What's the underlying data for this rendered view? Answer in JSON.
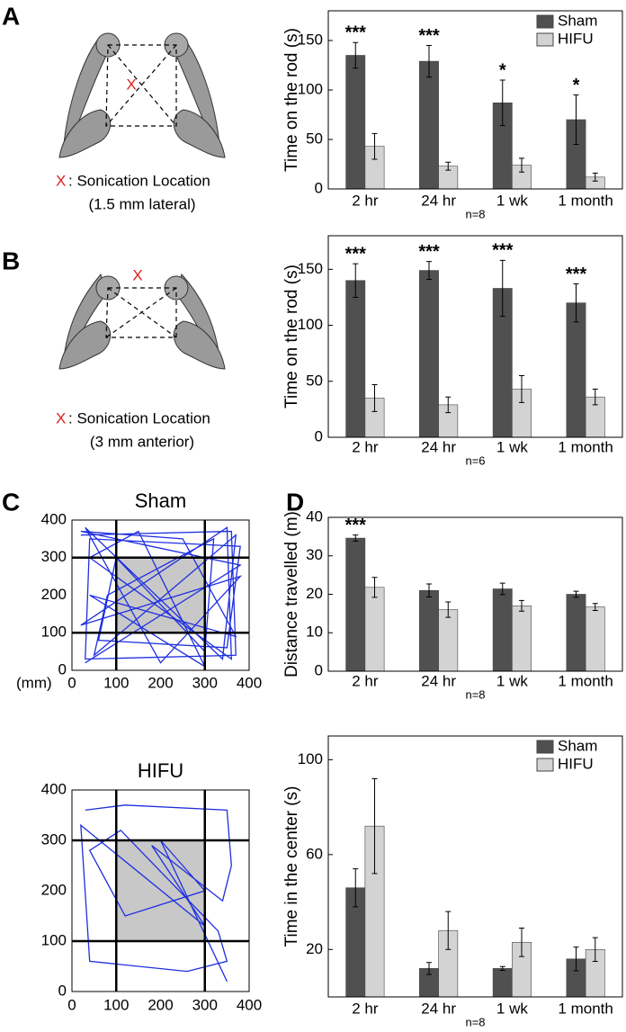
{
  "panels": [
    "A",
    "B",
    "C",
    "D"
  ],
  "diagrams": [
    {
      "marker": "X",
      "caption": ": Sonication Location",
      "detail": "(1.5 mm lateral)"
    },
    {
      "marker": "X",
      "caption": ": Sonication Location",
      "detail": "(3 mm anterior)"
    }
  ],
  "chart_data": [
    {
      "type": "bar",
      "y_label": "Time on the rod (s)",
      "x_label": "n=8",
      "categories": [
        "2 hr",
        "24 hr",
        "1 wk",
        "1 month"
      ],
      "series": [
        {
          "name": "Sham",
          "color": "#505050",
          "values": [
            135,
            129,
            87,
            70
          ],
          "errors": [
            13,
            16,
            23,
            25
          ]
        },
        {
          "name": "HIFU",
          "color": "#d3d3d3",
          "values": [
            43,
            23,
            24,
            12
          ],
          "errors": [
            13,
            4,
            7,
            4
          ]
        }
      ],
      "annotations": [
        "***",
        "***",
        "*",
        "*"
      ],
      "ylim": [
        0,
        180
      ],
      "yticks": [
        0,
        50,
        100,
        150
      ],
      "legend": "upper right"
    },
    {
      "type": "bar",
      "y_label": "Time on the rod (s)",
      "x_label": "n=6",
      "categories": [
        "2 hr",
        "24 hr",
        "1 wk",
        "1 month"
      ],
      "series": [
        {
          "name": "Sham",
          "color": "#505050",
          "values": [
            140,
            149,
            133,
            120
          ],
          "errors": [
            15,
            8,
            25,
            17
          ]
        },
        {
          "name": "HIFU",
          "color": "#d3d3d3",
          "values": [
            35,
            29,
            43,
            36
          ],
          "errors": [
            12,
            7,
            12,
            7
          ]
        }
      ],
      "annotations": [
        "***",
        "***",
        "***",
        "***"
      ],
      "ylim": [
        0,
        180
      ],
      "yticks": [
        0,
        50,
        100,
        150
      ]
    },
    {
      "type": "bar",
      "y_label": "Distance travelled (m)",
      "x_label": "n=8",
      "categories": [
        "2 hr",
        "24 hr",
        "1 wk",
        "1 month"
      ],
      "series": [
        {
          "name": "Sham",
          "color": "#505050",
          "values": [
            34.6,
            21,
            21.4,
            20
          ],
          "errors": [
            0.8,
            1.7,
            1.5,
            0.8
          ]
        },
        {
          "name": "HIFU",
          "color": "#d3d3d3",
          "values": [
            21.8,
            16,
            17,
            16.7
          ],
          "errors": [
            2.6,
            2,
            1.4,
            0.9
          ]
        }
      ],
      "annotations": [
        "***",
        null,
        null,
        null
      ],
      "ylim": [
        0,
        40
      ],
      "yticks": [
        0,
        10,
        20,
        30,
        40
      ]
    },
    {
      "type": "bar",
      "y_label": "Time in the center (s)",
      "x_label": "n=8",
      "categories": [
        "2 hr",
        "24 hr",
        "1 wk",
        "1 month"
      ],
      "series": [
        {
          "name": "Sham",
          "color": "#505050",
          "values": [
            46,
            12,
            12,
            16
          ],
          "errors": [
            8,
            2.5,
            0.8,
            5
          ]
        },
        {
          "name": "HIFU",
          "color": "#d3d3d3",
          "values": [
            72,
            28,
            23,
            20
          ],
          "errors": [
            20,
            8,
            6,
            5
          ]
        }
      ],
      "ylim": [
        0,
        110
      ],
      "yticks": [
        20,
        60,
        100
      ],
      "legend": "upper right"
    },
    {
      "type": "line",
      "title": "Sham",
      "x_unit": "(mm)",
      "color": "#1f2fe0",
      "x": [
        20,
        360,
        370,
        30,
        40,
        380,
        350,
        60,
        100,
        300,
        320,
        80,
        50,
        370,
        340,
        30,
        200,
        380,
        20,
        350,
        360,
        40,
        150,
        300,
        40,
        370,
        250,
        20,
        380,
        30
      ],
      "values": [
        360,
        370,
        40,
        30,
        350,
        330,
        60,
        80,
        300,
        50,
        350,
        200,
        40,
        360,
        30,
        380,
        20,
        250,
        120,
        380,
        30,
        300,
        370,
        10,
        200,
        90,
        350,
        370,
        280,
        20
      ],
      "center": [
        100,
        300
      ],
      "xlim": [
        0,
        400
      ],
      "ylim": [
        0,
        400
      ],
      "xticks": [
        0,
        100,
        200,
        300,
        400
      ],
      "yticks": [
        0,
        100,
        200,
        300,
        400
      ]
    },
    {
      "type": "line",
      "title": "HIFU",
      "color": "#1f2fe0",
      "x": [
        30,
        120,
        350,
        360,
        340,
        180,
        300,
        20,
        40,
        260,
        350,
        330,
        110,
        40,
        120,
        300,
        200,
        350
      ],
      "values": [
        360,
        370,
        360,
        250,
        180,
        290,
        130,
        330,
        60,
        40,
        60,
        120,
        320,
        280,
        150,
        200,
        300,
        20
      ],
      "center": [
        100,
        300
      ],
      "xlim": [
        0,
        400
      ],
      "ylim": [
        0,
        400
      ],
      "xticks": [
        0,
        100,
        200,
        300,
        400
      ],
      "yticks": [
        0,
        100,
        200,
        300,
        400
      ]
    }
  ]
}
